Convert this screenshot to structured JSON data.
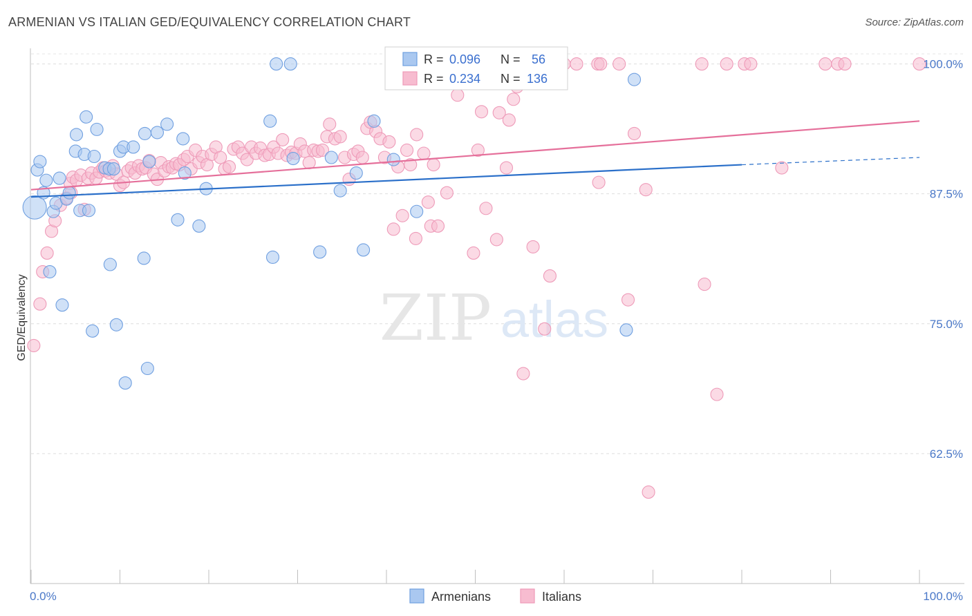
{
  "header": {
    "title": "ARMENIAN VS ITALIAN GED/EQUIVALENCY CORRELATION CHART",
    "source": "Source: ZipAtlas.com"
  },
  "watermark": {
    "zip": "ZIP",
    "atlas": "atlas"
  },
  "legend_box": {
    "r_label": "R =",
    "n_label": "N =",
    "armenians": {
      "r": "0.096",
      "n": "56"
    },
    "italians": {
      "r": "0.234",
      "n": "136"
    }
  },
  "colors": {
    "armenians_fill": "#aac8f0",
    "armenians_stroke": "#6f9fe0",
    "armenians_line": "#2a6fc9",
    "italians_fill": "#f7bcd0",
    "italians_stroke": "#ee9ab8",
    "italians_line": "#e56f9a",
    "value_text": "#3a6fcf"
  },
  "chart_data": {
    "type": "scatter",
    "title": "ARMENIAN VS ITALIAN GED/EQUIVALENCY CORRELATION CHART",
    "xlabel": "",
    "ylabel": "GED/Equivalency",
    "xlim": [
      0,
      100
    ],
    "ylim": [
      50,
      101.5
    ],
    "x_tick_labels": [
      "0.0%",
      "100.0%"
    ],
    "y_ticks": [
      {
        "value": 100,
        "label": "100.0%"
      },
      {
        "value": 87.5,
        "label": "87.5%"
      },
      {
        "value": 75,
        "label": "75.0%"
      },
      {
        "value": 62.5,
        "label": "62.5%"
      }
    ],
    "grid": true,
    "legend_position": "bottom-center",
    "series": [
      {
        "name": "Armenians",
        "r": 0.096,
        "n": 56,
        "trend": {
          "x0": 0,
          "y0": 87.2,
          "x1": 80,
          "y1": 90.3,
          "dash_to_x": 100,
          "dash_to_y": 91.0
        },
        "points": [
          [
            0.4,
            86.2
          ],
          [
            0.7,
            89.8
          ],
          [
            1.0,
            90.6
          ],
          [
            1.4,
            87.6
          ],
          [
            1.7,
            88.8
          ],
          [
            2.1,
            80.0
          ],
          [
            2.5,
            85.8
          ],
          [
            2.8,
            86.6
          ],
          [
            3.2,
            89.0
          ],
          [
            3.5,
            76.8
          ],
          [
            4.0,
            87.0
          ],
          [
            4.3,
            87.6
          ],
          [
            5.0,
            91.6
          ],
          [
            5.1,
            93.2
          ],
          [
            5.5,
            85.9
          ],
          [
            6.0,
            91.3
          ],
          [
            6.2,
            94.9
          ],
          [
            6.5,
            85.9
          ],
          [
            6.9,
            74.3
          ],
          [
            7.1,
            91.1
          ],
          [
            7.4,
            93.7
          ],
          [
            8.3,
            90.0
          ],
          [
            8.8,
            89.9
          ],
          [
            8.9,
            80.7
          ],
          [
            9.3,
            89.9
          ],
          [
            9.6,
            74.9
          ],
          [
            10.0,
            91.6
          ],
          [
            10.4,
            92.0
          ],
          [
            10.6,
            69.3
          ],
          [
            11.5,
            92.0
          ],
          [
            12.7,
            81.3
          ],
          [
            12.8,
            93.3
          ],
          [
            13.1,
            70.7
          ],
          [
            13.3,
            90.6
          ],
          [
            14.2,
            93.4
          ],
          [
            15.3,
            94.2
          ],
          [
            16.5,
            85.0
          ],
          [
            17.1,
            92.8
          ],
          [
            17.3,
            89.5
          ],
          [
            18.9,
            84.4
          ],
          [
            19.7,
            88.0
          ],
          [
            26.9,
            94.5
          ],
          [
            27.2,
            81.4
          ],
          [
            27.6,
            100.0
          ],
          [
            29.2,
            100.0
          ],
          [
            29.5,
            90.9
          ],
          [
            32.5,
            81.9
          ],
          [
            33.8,
            91.0
          ],
          [
            34.8,
            87.8
          ],
          [
            36.6,
            89.5
          ],
          [
            37.4,
            82.1
          ],
          [
            38.6,
            94.5
          ],
          [
            40.8,
            90.8
          ],
          [
            43.4,
            85.8
          ],
          [
            67.0,
            74.4
          ],
          [
            67.9,
            98.5
          ]
        ]
      },
      {
        "name": "Italians",
        "r": 0.234,
        "n": 136,
        "trend": {
          "x0": 0,
          "y0": 87.9,
          "x1": 100,
          "y1": 94.5
        },
        "points": [
          [
            0.3,
            72.9
          ],
          [
            1.0,
            76.9
          ],
          [
            1.3,
            80.0
          ],
          [
            1.8,
            81.8
          ],
          [
            2.3,
            83.9
          ],
          [
            2.7,
            84.9
          ],
          [
            3.3,
            86.4
          ],
          [
            4.0,
            87.1
          ],
          [
            4.4,
            88.5
          ],
          [
            4.5,
            87.6
          ],
          [
            4.7,
            89.1
          ],
          [
            5.1,
            88.8
          ],
          [
            5.6,
            89.3
          ],
          [
            6.0,
            86.0
          ],
          [
            6.4,
            89.0
          ],
          [
            6.8,
            89.5
          ],
          [
            7.3,
            89.0
          ],
          [
            7.7,
            89.6
          ],
          [
            8.1,
            90.0
          ],
          [
            8.4,
            89.7
          ],
          [
            8.8,
            89.5
          ],
          [
            9.2,
            90.2
          ],
          [
            9.6,
            89.4
          ],
          [
            10.0,
            88.3
          ],
          [
            10.4,
            88.6
          ],
          [
            10.9,
            89.7
          ],
          [
            11.3,
            90.0
          ],
          [
            11.7,
            89.5
          ],
          [
            12.1,
            90.2
          ],
          [
            12.5,
            89.9
          ],
          [
            12.9,
            90.0
          ],
          [
            13.3,
            90.7
          ],
          [
            13.8,
            89.4
          ],
          [
            14.2,
            88.9
          ],
          [
            14.6,
            90.5
          ],
          [
            15.0,
            89.7
          ],
          [
            15.5,
            90.1
          ],
          [
            15.9,
            90.0
          ],
          [
            16.3,
            90.4
          ],
          [
            16.7,
            90.3
          ],
          [
            17.2,
            90.8
          ],
          [
            17.6,
            91.1
          ],
          [
            18.0,
            89.9
          ],
          [
            18.5,
            91.7
          ],
          [
            18.9,
            90.5
          ],
          [
            19.3,
            91.1
          ],
          [
            19.8,
            90.3
          ],
          [
            20.3,
            91.3
          ],
          [
            20.8,
            92.0
          ],
          [
            21.3,
            91.0
          ],
          [
            21.8,
            89.9
          ],
          [
            22.3,
            90.1
          ],
          [
            22.8,
            91.8
          ],
          [
            23.3,
            92.0
          ],
          [
            23.8,
            91.4
          ],
          [
            24.3,
            90.8
          ],
          [
            24.8,
            92.0
          ],
          [
            25.3,
            91.4
          ],
          [
            25.8,
            91.9
          ],
          [
            26.3,
            91.2
          ],
          [
            26.8,
            91.3
          ],
          [
            27.3,
            92.0
          ],
          [
            27.8,
            91.4
          ],
          [
            28.3,
            92.7
          ],
          [
            28.8,
            91.2
          ],
          [
            29.3,
            91.5
          ],
          [
            29.8,
            91.4
          ],
          [
            30.3,
            92.3
          ],
          [
            30.8,
            91.6
          ],
          [
            31.3,
            90.5
          ],
          [
            31.8,
            91.7
          ],
          [
            32.3,
            91.6
          ],
          [
            32.8,
            91.7
          ],
          [
            33.3,
            93.0
          ],
          [
            33.6,
            94.2
          ],
          [
            34.2,
            92.8
          ],
          [
            34.8,
            93.0
          ],
          [
            35.3,
            91.0
          ],
          [
            35.8,
            88.9
          ],
          [
            36.3,
            91.3
          ],
          [
            36.8,
            91.6
          ],
          [
            37.3,
            91.0
          ],
          [
            37.8,
            93.8
          ],
          [
            38.2,
            94.4
          ],
          [
            38.8,
            93.5
          ],
          [
            39.3,
            92.8
          ],
          [
            39.8,
            91.0
          ],
          [
            40.3,
            92.5
          ],
          [
            40.8,
            84.1
          ],
          [
            41.3,
            90.1
          ],
          [
            41.8,
            85.4
          ],
          [
            42.3,
            91.7
          ],
          [
            42.7,
            90.3
          ],
          [
            43.3,
            83.2
          ],
          [
            43.4,
            93.2
          ],
          [
            44.2,
            91.4
          ],
          [
            44.7,
            86.7
          ],
          [
            45.0,
            84.4
          ],
          [
            45.3,
            90.3
          ],
          [
            45.8,
            84.4
          ],
          [
            46.8,
            87.6
          ],
          [
            47.6,
            100.0
          ],
          [
            48.0,
            97.0
          ],
          [
            48.5,
            100.0
          ],
          [
            49.8,
            81.8
          ],
          [
            50.3,
            91.7
          ],
          [
            50.7,
            95.4
          ],
          [
            51.2,
            86.1
          ],
          [
            52.4,
            83.1
          ],
          [
            52.7,
            95.3
          ],
          [
            53.5,
            90.0
          ],
          [
            53.8,
            94.6
          ],
          [
            54.3,
            96.6
          ],
          [
            54.7,
            97.8
          ],
          [
            55.0,
            100.0
          ],
          [
            55.4,
            70.2
          ],
          [
            56.5,
            82.4
          ],
          [
            57.3,
            100.0
          ],
          [
            57.8,
            74.5
          ],
          [
            58.4,
            79.6
          ],
          [
            60.0,
            100.0
          ],
          [
            61.4,
            100.0
          ],
          [
            63.8,
            100.0
          ],
          [
            63.9,
            88.6
          ],
          [
            64.1,
            100.0
          ],
          [
            66.2,
            100.0
          ],
          [
            67.2,
            77.3
          ],
          [
            67.9,
            93.3
          ],
          [
            69.2,
            87.9
          ],
          [
            69.5,
            58.8
          ],
          [
            75.5,
            100.0
          ],
          [
            75.8,
            78.8
          ],
          [
            77.2,
            68.2
          ],
          [
            78.3,
            100.0
          ],
          [
            80.3,
            100.0
          ],
          [
            81.0,
            100.0
          ],
          [
            84.5,
            90.0
          ],
          [
            89.4,
            100.0
          ],
          [
            90.8,
            100.0
          ],
          [
            91.6,
            100.0
          ],
          [
            100.0,
            100.0
          ]
        ]
      }
    ]
  }
}
